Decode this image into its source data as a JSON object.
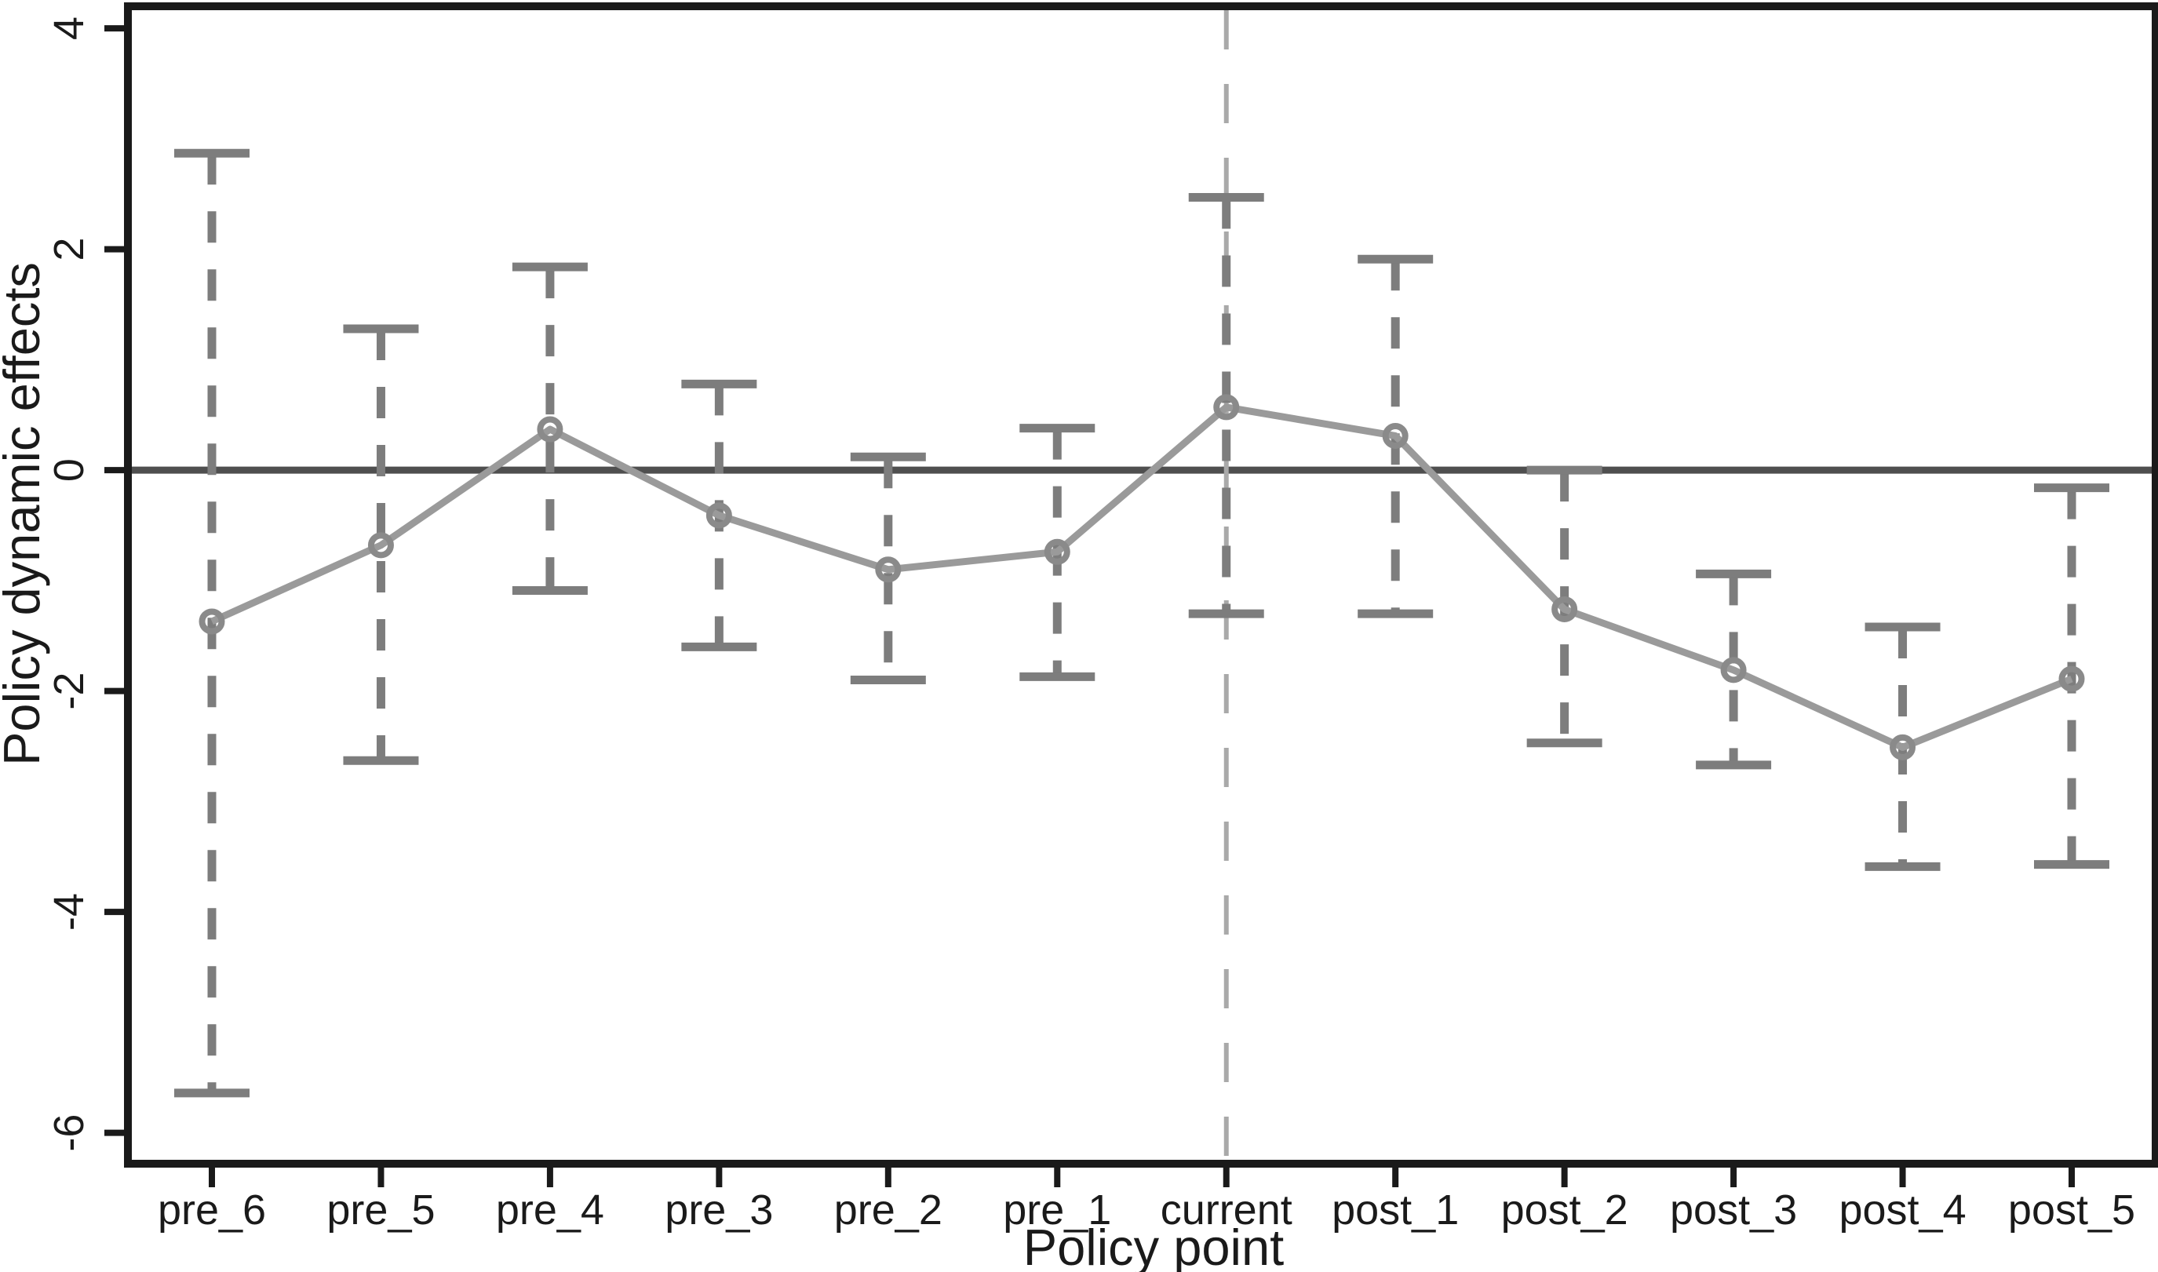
{
  "page": {
    "background": "#ffffff"
  },
  "chart_data": {
    "type": "line",
    "subtype": "point-estimates-with-error-bars",
    "title": "",
    "xlabel": "Policy point",
    "ylabel": "Policy dynamic effects",
    "categories": [
      "pre_6",
      "pre_5",
      "pre_4",
      "pre_3",
      "pre_2",
      "pre_1",
      "current",
      "post_1",
      "post_2",
      "post_3",
      "post_4",
      "post_5"
    ],
    "series": [
      {
        "name": "Policy dynamic effects (point estimates)",
        "values": [
          -1.37,
          -0.68,
          0.37,
          -0.41,
          -0.9,
          -0.74,
          0.57,
          0.31,
          -1.26,
          -1.81,
          -2.51,
          -1.89
        ]
      }
    ],
    "error_bars": {
      "upper": [
        2.87,
        1.28,
        1.84,
        0.78,
        0.12,
        0.38,
        2.47,
        1.91,
        0.0,
        -0.94,
        -1.42,
        -0.16
      ],
      "lower": [
        -5.64,
        -2.63,
        -1.09,
        -1.6,
        -1.9,
        -1.87,
        -1.3,
        -1.3,
        -2.47,
        -2.67,
        -3.59,
        -3.57
      ]
    },
    "yticks": [
      4,
      2,
      0,
      -2,
      -4,
      -6
    ],
    "ylim": [
      -6.28,
      4.2
    ],
    "grid": false,
    "legend": false,
    "annotations": {
      "zero_line_y": 0,
      "vertical_reference_category": "current"
    }
  },
  "colors": {
    "axis_and_text": "#1a1a1a",
    "series_line": "#9a9a9a",
    "marker_stroke": "#8a8a8a",
    "error_bar": "#7d7d7d",
    "zero_line": "#4f4f4f",
    "reference_line": "#a9a9a9",
    "background": "#ffffff"
  }
}
